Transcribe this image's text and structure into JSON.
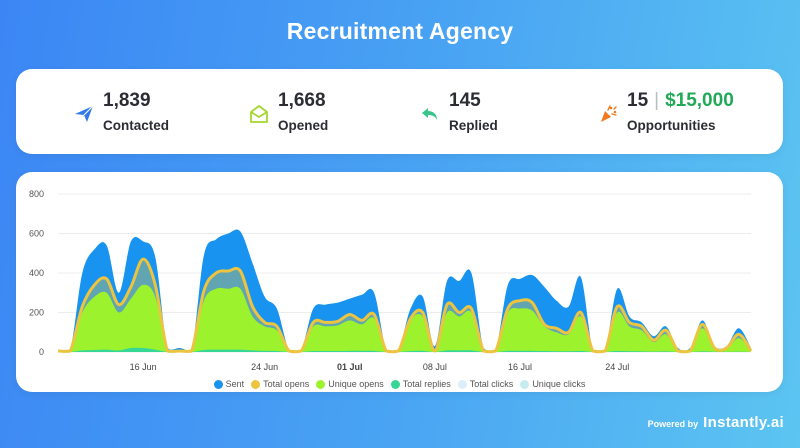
{
  "title": "Recruitment Agency",
  "stats": [
    {
      "value": "1,839",
      "label": "Contacted",
      "icon": "paper-plane-icon",
      "color": "#2f7bec"
    },
    {
      "value": "1,668",
      "label": "Opened",
      "icon": "envelope-open-icon",
      "color": "#a4d62b"
    },
    {
      "value": "145",
      "label": "Replied",
      "icon": "reply-arrow-icon",
      "color": "#38c48a"
    },
    {
      "value": "15",
      "value2": "$15,000",
      "label": "Opportunities",
      "icon": "party-popper-icon",
      "color": "#f07a20"
    }
  ],
  "footer": {
    "powered_by": "Powered by",
    "brand": "Instantly.ai"
  },
  "chart_data": {
    "type": "area",
    "ylim": [
      0,
      800
    ],
    "yticks": [
      "800",
      "600",
      "400",
      "200",
      "0"
    ],
    "xtick_labels": [
      {
        "index": 7,
        "label": "16 Jun"
      },
      {
        "index": 17,
        "label": "24 Jun"
      },
      {
        "index": 24,
        "label": "01 Jul",
        "bold": true
      },
      {
        "index": 31,
        "label": "08 Jul"
      },
      {
        "index": 38,
        "label": "16 Jul"
      },
      {
        "index": 46,
        "label": "24 Jul"
      }
    ],
    "series": [
      {
        "name": "Sent",
        "color": "#1894f0",
        "kind": "area",
        "values": [
          10,
          10,
          400,
          520,
          540,
          300,
          560,
          560,
          480,
          20,
          20,
          10,
          490,
          570,
          600,
          610,
          450,
          280,
          220,
          10,
          10,
          220,
          240,
          250,
          270,
          290,
          300,
          10,
          10,
          220,
          280,
          30,
          360,
          360,
          400,
          20,
          10,
          340,
          370,
          390,
          330,
          260,
          230,
          380,
          10,
          10,
          320,
          180,
          150,
          80,
          130,
          20,
          20,
          160,
          30,
          30,
          120,
          20
        ]
      },
      {
        "name": "Total opens",
        "color": "#ecc43f",
        "kind": "line",
        "values": [
          5,
          5,
          230,
          340,
          370,
          240,
          330,
          470,
          340,
          5,
          5,
          5,
          310,
          400,
          410,
          410,
          230,
          150,
          130,
          5,
          5,
          150,
          150,
          155,
          190,
          160,
          190,
          5,
          5,
          170,
          200,
          5,
          240,
          200,
          220,
          5,
          5,
          220,
          260,
          250,
          140,
          120,
          100,
          200,
          5,
          5,
          230,
          150,
          130,
          60,
          110,
          5,
          5,
          140,
          20,
          20,
          90,
          5
        ]
      },
      {
        "name": "Unique opens",
        "color": "#9cf22d",
        "kind": "area",
        "values": [
          5,
          5,
          200,
          280,
          300,
          200,
          270,
          340,
          280,
          5,
          5,
          5,
          260,
          320,
          320,
          320,
          180,
          130,
          110,
          5,
          5,
          130,
          130,
          135,
          160,
          140,
          170,
          5,
          5,
          160,
          180,
          5,
          200,
          180,
          200,
          5,
          5,
          200,
          220,
          210,
          130,
          100,
          90,
          180,
          5,
          5,
          200,
          130,
          110,
          50,
          90,
          5,
          5,
          120,
          15,
          15,
          70,
          5
        ]
      },
      {
        "name": "Total replies",
        "color": "#36d795",
        "kind": "area",
        "values": [
          0,
          0,
          8,
          10,
          12,
          8,
          20,
          20,
          12,
          0,
          0,
          0,
          10,
          12,
          12,
          12,
          8,
          6,
          5,
          0,
          0,
          5,
          5,
          5,
          6,
          6,
          6,
          0,
          0,
          5,
          6,
          0,
          8,
          8,
          8,
          0,
          0,
          6,
          6,
          6,
          5,
          4,
          4,
          5,
          0,
          0,
          5,
          4,
          3,
          2,
          3,
          0,
          0,
          3,
          1,
          1,
          2,
          0
        ]
      },
      {
        "name": "Total clicks",
        "color": "#dcedfa",
        "kind": "area",
        "values": []
      },
      {
        "name": "Unique clicks",
        "color": "#c6ebf0",
        "kind": "area",
        "values": []
      }
    ]
  }
}
